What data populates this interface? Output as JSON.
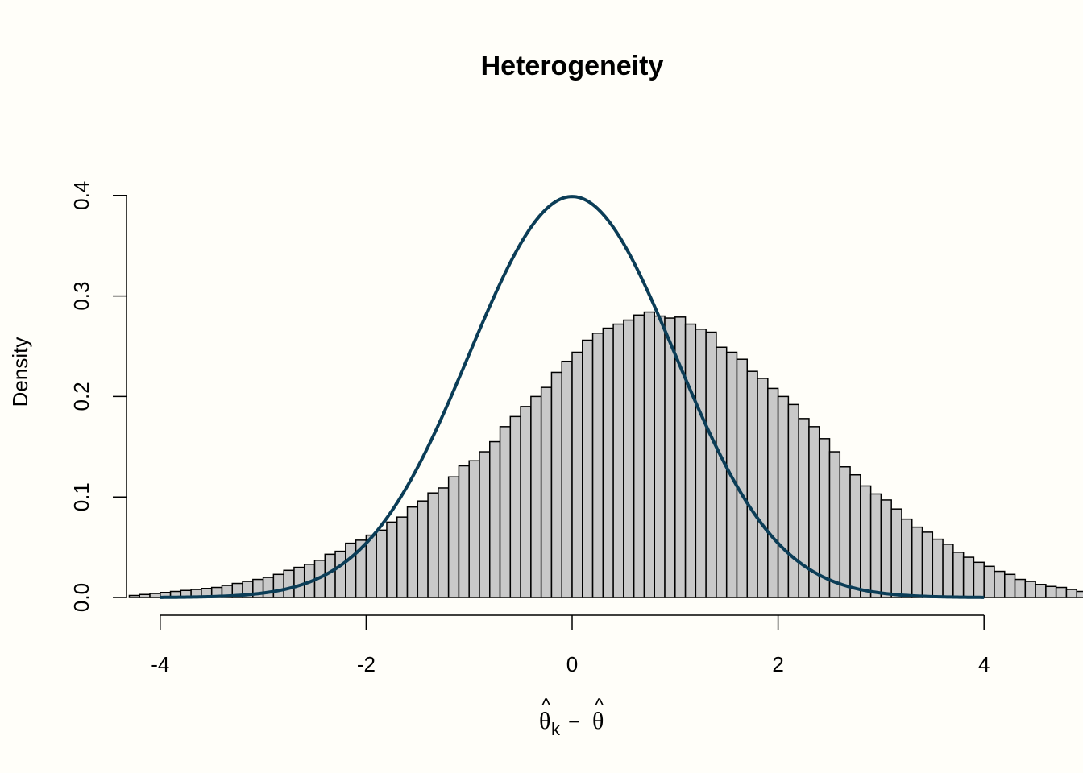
{
  "chart_data": {
    "type": "bar",
    "title": "Heterogeneity",
    "xlabel": "θ̂k − θ̂",
    "xlabel_parts": {
      "theta": "θ",
      "hat": "^",
      "sub": "k",
      "minus": "−"
    },
    "ylabel": "Density",
    "xlim": [
      -4.3,
      4.3
    ],
    "ylim": [
      0,
      0.4
    ],
    "x_ticks": [
      "-4",
      "-2",
      "0",
      "2",
      "4"
    ],
    "y_ticks": [
      "0.0",
      "0.1",
      "0.2",
      "0.3",
      "0.4"
    ],
    "bin_start": -4.3,
    "bin_width": 0.1,
    "histogram": [
      0.002,
      0.003,
      0.004,
      0.005,
      0.006,
      0.007,
      0.008,
      0.009,
      0.01,
      0.012,
      0.014,
      0.016,
      0.018,
      0.02,
      0.023,
      0.027,
      0.03,
      0.033,
      0.037,
      0.043,
      0.046,
      0.054,
      0.057,
      0.062,
      0.067,
      0.075,
      0.08,
      0.09,
      0.096,
      0.104,
      0.109,
      0.12,
      0.131,
      0.136,
      0.145,
      0.155,
      0.17,
      0.18,
      0.19,
      0.2,
      0.209,
      0.224,
      0.235,
      0.244,
      0.256,
      0.263,
      0.268,
      0.272,
      0.276,
      0.281,
      0.284,
      0.28,
      0.278,
      0.279,
      0.272,
      0.267,
      0.264,
      0.249,
      0.244,
      0.237,
      0.225,
      0.218,
      0.208,
      0.2,
      0.192,
      0.178,
      0.17,
      0.158,
      0.145,
      0.13,
      0.122,
      0.111,
      0.103,
      0.097,
      0.088,
      0.078,
      0.07,
      0.065,
      0.058,
      0.053,
      0.045,
      0.04,
      0.035,
      0.031,
      0.026,
      0.023,
      0.018,
      0.016,
      0.013,
      0.011,
      0.01,
      0.008,
      0.006,
      0.005,
      0.004
    ],
    "series": [
      {
        "name": "",
        "type": "line",
        "function": "standard normal density",
        "x_range": [
          -4,
          4
        ],
        "color": "#0B3D57"
      }
    ],
    "bar_fill": "#C9C9C9",
    "bar_stroke": "#000000",
    "background": "#FFFEF9"
  }
}
